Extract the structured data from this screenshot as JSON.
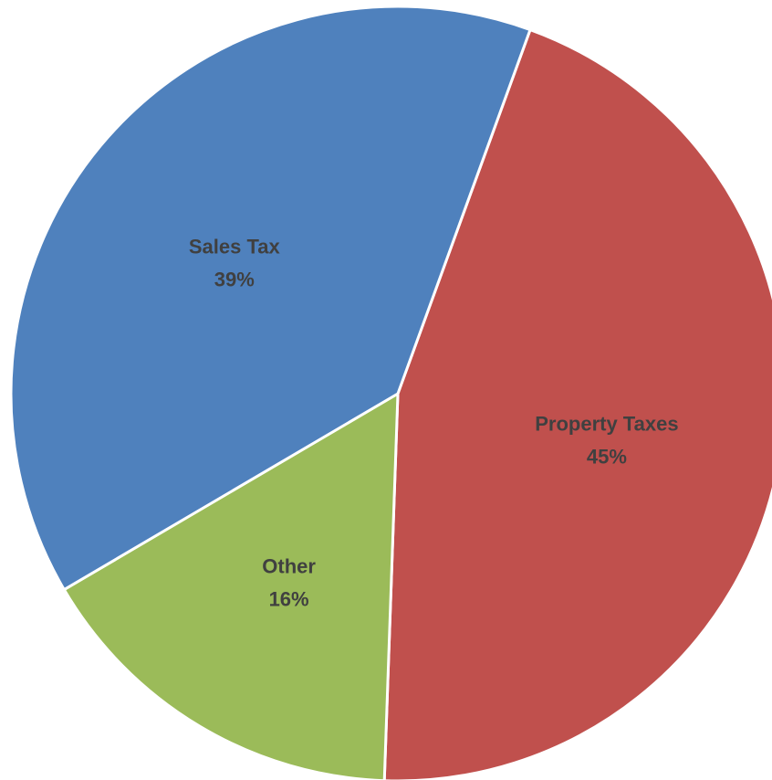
{
  "chart_data": {
    "type": "pie",
    "title": "",
    "start_angle_deg": 20,
    "direction": "clockwise",
    "slices": [
      {
        "label": "Property Taxes",
        "value": 45,
        "display": "45%",
        "color": "#C0504D"
      },
      {
        "label": "Other",
        "value": 16,
        "display": "16%",
        "color": "#9BBB59"
      },
      {
        "label": "Sales Tax",
        "value": 39,
        "display": "39%",
        "color": "#4F81BD"
      }
    ],
    "legend": "none",
    "data_labels": "inside"
  }
}
